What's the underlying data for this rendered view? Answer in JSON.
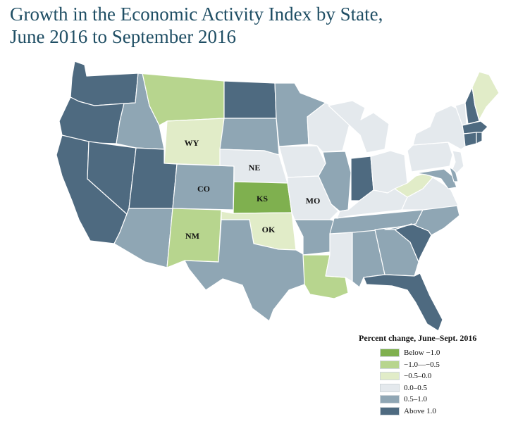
{
  "title_line1": "Growth in the Economic Activity Index by State,",
  "title_line2": "June 2016 to September 2016",
  "legend": {
    "title": "Percent change,  June–Sept. 2016",
    "items": [
      {
        "label": "Below −1.0",
        "color": "#7fb04f"
      },
      {
        "label": "−1.0—−0.5",
        "color": "#b7d58e"
      },
      {
        "label": "−0.5–0.0",
        "color": "#e1ecc8"
      },
      {
        "label": "0.0–0.5",
        "color": "#e4e9ed"
      },
      {
        "label": "0.5–1.0",
        "color": "#8fa6b4"
      },
      {
        "label": "Above 1.0",
        "color": "#4e6a80"
      }
    ]
  },
  "state_labels": {
    "WY": "WY",
    "NE": "NE",
    "CO": "CO",
    "KS": "KS",
    "MO": "MO",
    "NM": "NM",
    "OK": "OK"
  },
  "states": {
    "WA": "Above 1.0",
    "OR": "Above 1.0",
    "CA": "Above 1.0",
    "NV": "Above 1.0",
    "UT": "Above 1.0",
    "ND": "Above 1.0",
    "SC": "Above 1.0",
    "FL": "Above 1.0",
    "IN": "Above 1.0",
    "NH": "Above 1.0",
    "MA": "Above 1.0",
    "CT": "Above 1.0",
    "RI": "Above 1.0",
    "ID": "0.5–1.0",
    "AZ": "0.5–1.0",
    "CO": "0.5–1.0",
    "SD": "0.5–1.0",
    "MN": "0.5–1.0",
    "TX": "0.5–1.0",
    "AR": "0.5–1.0",
    "IL": "0.5–1.0",
    "TN": "0.5–1.0",
    "AL": "0.5–1.0",
    "GA": "0.5–1.0",
    "NC": "0.5–1.0",
    "MD": "0.5–1.0",
    "DE": "0.5–1.0",
    "NE": "0.0–0.5",
    "IA": "0.0–0.5",
    "MO": "0.0–0.5",
    "WI": "0.0–0.5",
    "MI": "0.0–0.5",
    "OH": "0.0–0.5",
    "KY": "0.0–0.5",
    "VA": "0.0–0.5",
    "PA": "0.0–0.5",
    "NY": "0.0–0.5",
    "VT": "0.0–0.5",
    "NJ": "0.0–0.5",
    "MS": "0.0–0.5",
    "WY": "−0.5–0.0",
    "OK": "−0.5–0.0",
    "WV": "−0.5–0.0",
    "ME": "−0.5–0.0",
    "MT": "−1.0—−0.5",
    "NM": "−1.0—−0.5",
    "LA": "−1.0—−0.5",
    "KS": "Below −1.0"
  }
}
